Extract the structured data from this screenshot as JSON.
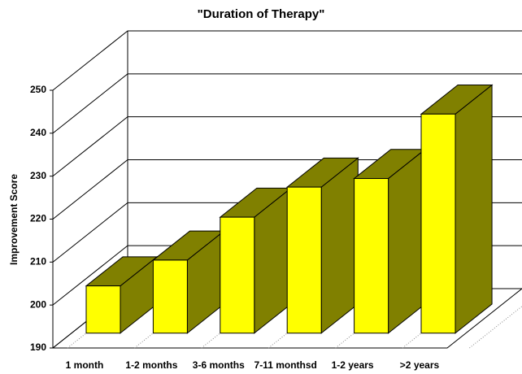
{
  "chart_data": {
    "type": "bar3d",
    "title": "\"Duration of Therapy\"",
    "y_label": "Improvement Score",
    "categories": [
      "1 month",
      "1-2 months",
      "3-6 months",
      "7-11 monthsd",
      "1-2 years",
      ">2 years"
    ],
    "values": [
      201,
      207,
      217,
      224,
      226,
      241
    ],
    "color": "#ffff00",
    "side_color": "#808000",
    "ylim": [
      190,
      250
    ],
    "yticks": [
      190,
      200,
      210,
      220,
      230,
      240,
      250
    ],
    "grid": true
  }
}
